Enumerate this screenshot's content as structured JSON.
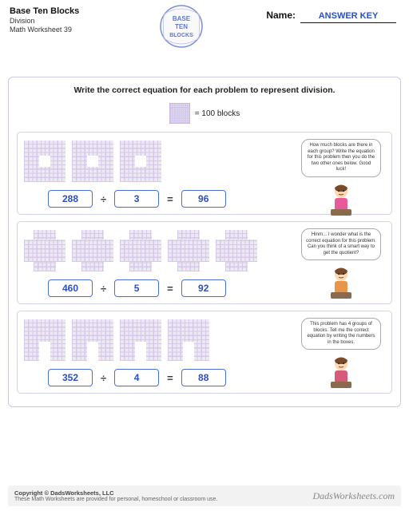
{
  "header": {
    "title": "Base Ten Blocks",
    "subtitle": "Division",
    "worksheet_num": "Math Worksheet 39",
    "logo_lines": [
      "BASE",
      "TEN",
      "BLOCKS"
    ],
    "name_label": "Name:",
    "answer_key": "ANSWER KEY"
  },
  "colors": {
    "accent": "#2a4fc9",
    "box_border": "#4a6fd8",
    "panel_border": "#c9c9e8",
    "block_fill": "#eee8f5",
    "block_line": "#d4c9e8"
  },
  "instruction": "Write the correct equation for each problem to represent division.",
  "legend": "= 100 blocks",
  "problems": [
    {
      "shape": "hole",
      "groups": 3,
      "speech": "How much blocks are there in each group? Write the equation for this problem then you do the two other ones below. Good luck!",
      "person_color": "#e85a9a",
      "dividend": "288",
      "divisor": "3",
      "quotient": "96"
    },
    {
      "shape": "cross",
      "groups": 5,
      "speech": "Hmm... I wonder what is the correct equation for this problem. Can you think of a smart way to get the quotient?",
      "person_color": "#e8954a",
      "dividend": "460",
      "divisor": "5",
      "quotient": "92"
    },
    {
      "shape": "arch",
      "groups": 4,
      "speech": "This problem has 4 groups of blocks. Tell me the correct equation by writing the numbers in the boxes.",
      "person_color": "#d85a7a",
      "dividend": "352",
      "divisor": "4",
      "quotient": "88"
    }
  ],
  "footer": {
    "copyright": "Copyright © DadsWorksheets, LLC",
    "note": "These Math Worksheets are provided for personal, homeschool or classroom use.",
    "brand": "DadsWorksheets.com"
  }
}
